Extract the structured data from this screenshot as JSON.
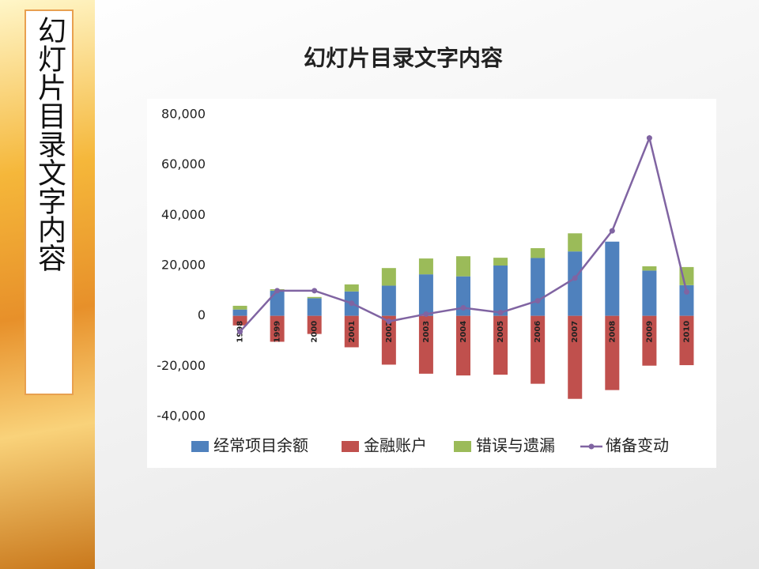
{
  "sidebar": {
    "title": "幻灯片目录文字内容"
  },
  "chart_data": {
    "type": "bar",
    "title": "幻灯片目录文字内容",
    "categories": [
      "1998",
      "1999",
      "2000",
      "2001",
      "2002",
      "2003",
      "2004",
      "2005",
      "2006",
      "2007",
      "2008",
      "2009",
      "2010"
    ],
    "series": [
      {
        "name": "经常项目余额",
        "color": "#4f81bd",
        "type": "bar",
        "stack": "a",
        "values": [
          2500,
          10000,
          7000,
          9700,
          12000,
          16500,
          15700,
          20000,
          23000,
          25600,
          29500,
          18000,
          12200
        ]
      },
      {
        "name": "金融账户",
        "color": "#c0504d",
        "type": "bar",
        "stack": "a",
        "values": [
          -3800,
          -10300,
          -7200,
          -12500,
          -19400,
          -23000,
          -23700,
          -23400,
          -27000,
          -33000,
          -29500,
          -19800,
          -19600
        ]
      },
      {
        "name": "错误与遗漏",
        "color": "#9bbb59",
        "type": "bar",
        "stack": "a",
        "values": [
          1500,
          600,
          500,
          2800,
          7000,
          6300,
          8000,
          3100,
          3900,
          7200,
          0,
          1700,
          7200
        ]
      },
      {
        "name": "储备变动",
        "color": "#8064a2",
        "type": "line",
        "values": [
          -6300,
          10000,
          10000,
          5000,
          -2200,
          700,
          3200,
          1300,
          6000,
          15000,
          33800,
          70700,
          9500
        ]
      }
    ],
    "ylim": [
      -40000,
      80000
    ],
    "yticks": [
      {
        "value": -40000,
        "label": "-40,000"
      },
      {
        "value": -20000,
        "label": "-20,000"
      },
      0,
      {
        "value": 20000,
        "label": "20,000"
      },
      {
        "value": 40000,
        "label": "40,000"
      },
      {
        "value": 60000,
        "label": "60,000"
      },
      {
        "value": 80000,
        "label": "80,000"
      }
    ],
    "grid": false,
    "legend": "bottom"
  }
}
